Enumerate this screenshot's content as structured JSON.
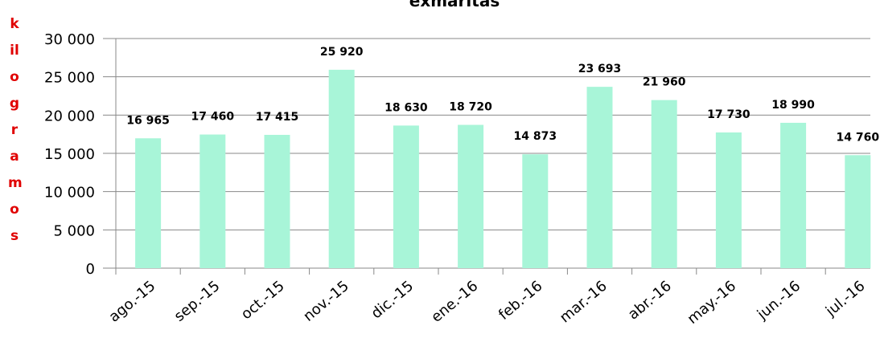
{
  "chart_data": {
    "type": "bar",
    "title": "exmaritas",
    "y_label": "kilogramos",
    "categories": [
      "ago.-15",
      "sep.-15",
      "oct.-15",
      "nov.-15",
      "dic.-15",
      "ene.-16",
      "feb.-16",
      "mar.-16",
      "abr.-16",
      "may.-16",
      "jun.-16",
      "jul.-16"
    ],
    "values": [
      16965,
      17460,
      17415,
      25920,
      18630,
      18720,
      14873,
      23693,
      21960,
      17730,
      18990,
      14760
    ],
    "value_labels": [
      "16 965",
      "17 460",
      "17 415",
      "25 920",
      "18 630",
      "18 720",
      "14 873",
      "23 693",
      "21 960",
      "17 730",
      "18 990",
      "14 760"
    ],
    "color": "#a8f5d8",
    "ylim": [
      0,
      30000
    ],
    "yticks": [
      {
        "value": 0,
        "label": "0"
      },
      {
        "value": 5000,
        "label": "5 000"
      },
      {
        "value": 10000,
        "label": "10 000"
      },
      {
        "value": 15000,
        "label": "15 000"
      },
      {
        "value": 20000,
        "label": "20 000"
      },
      {
        "value": 25000,
        "label": "25 000"
      },
      {
        "value": 30000,
        "label": "30 000"
      }
    ],
    "grid": true
  }
}
